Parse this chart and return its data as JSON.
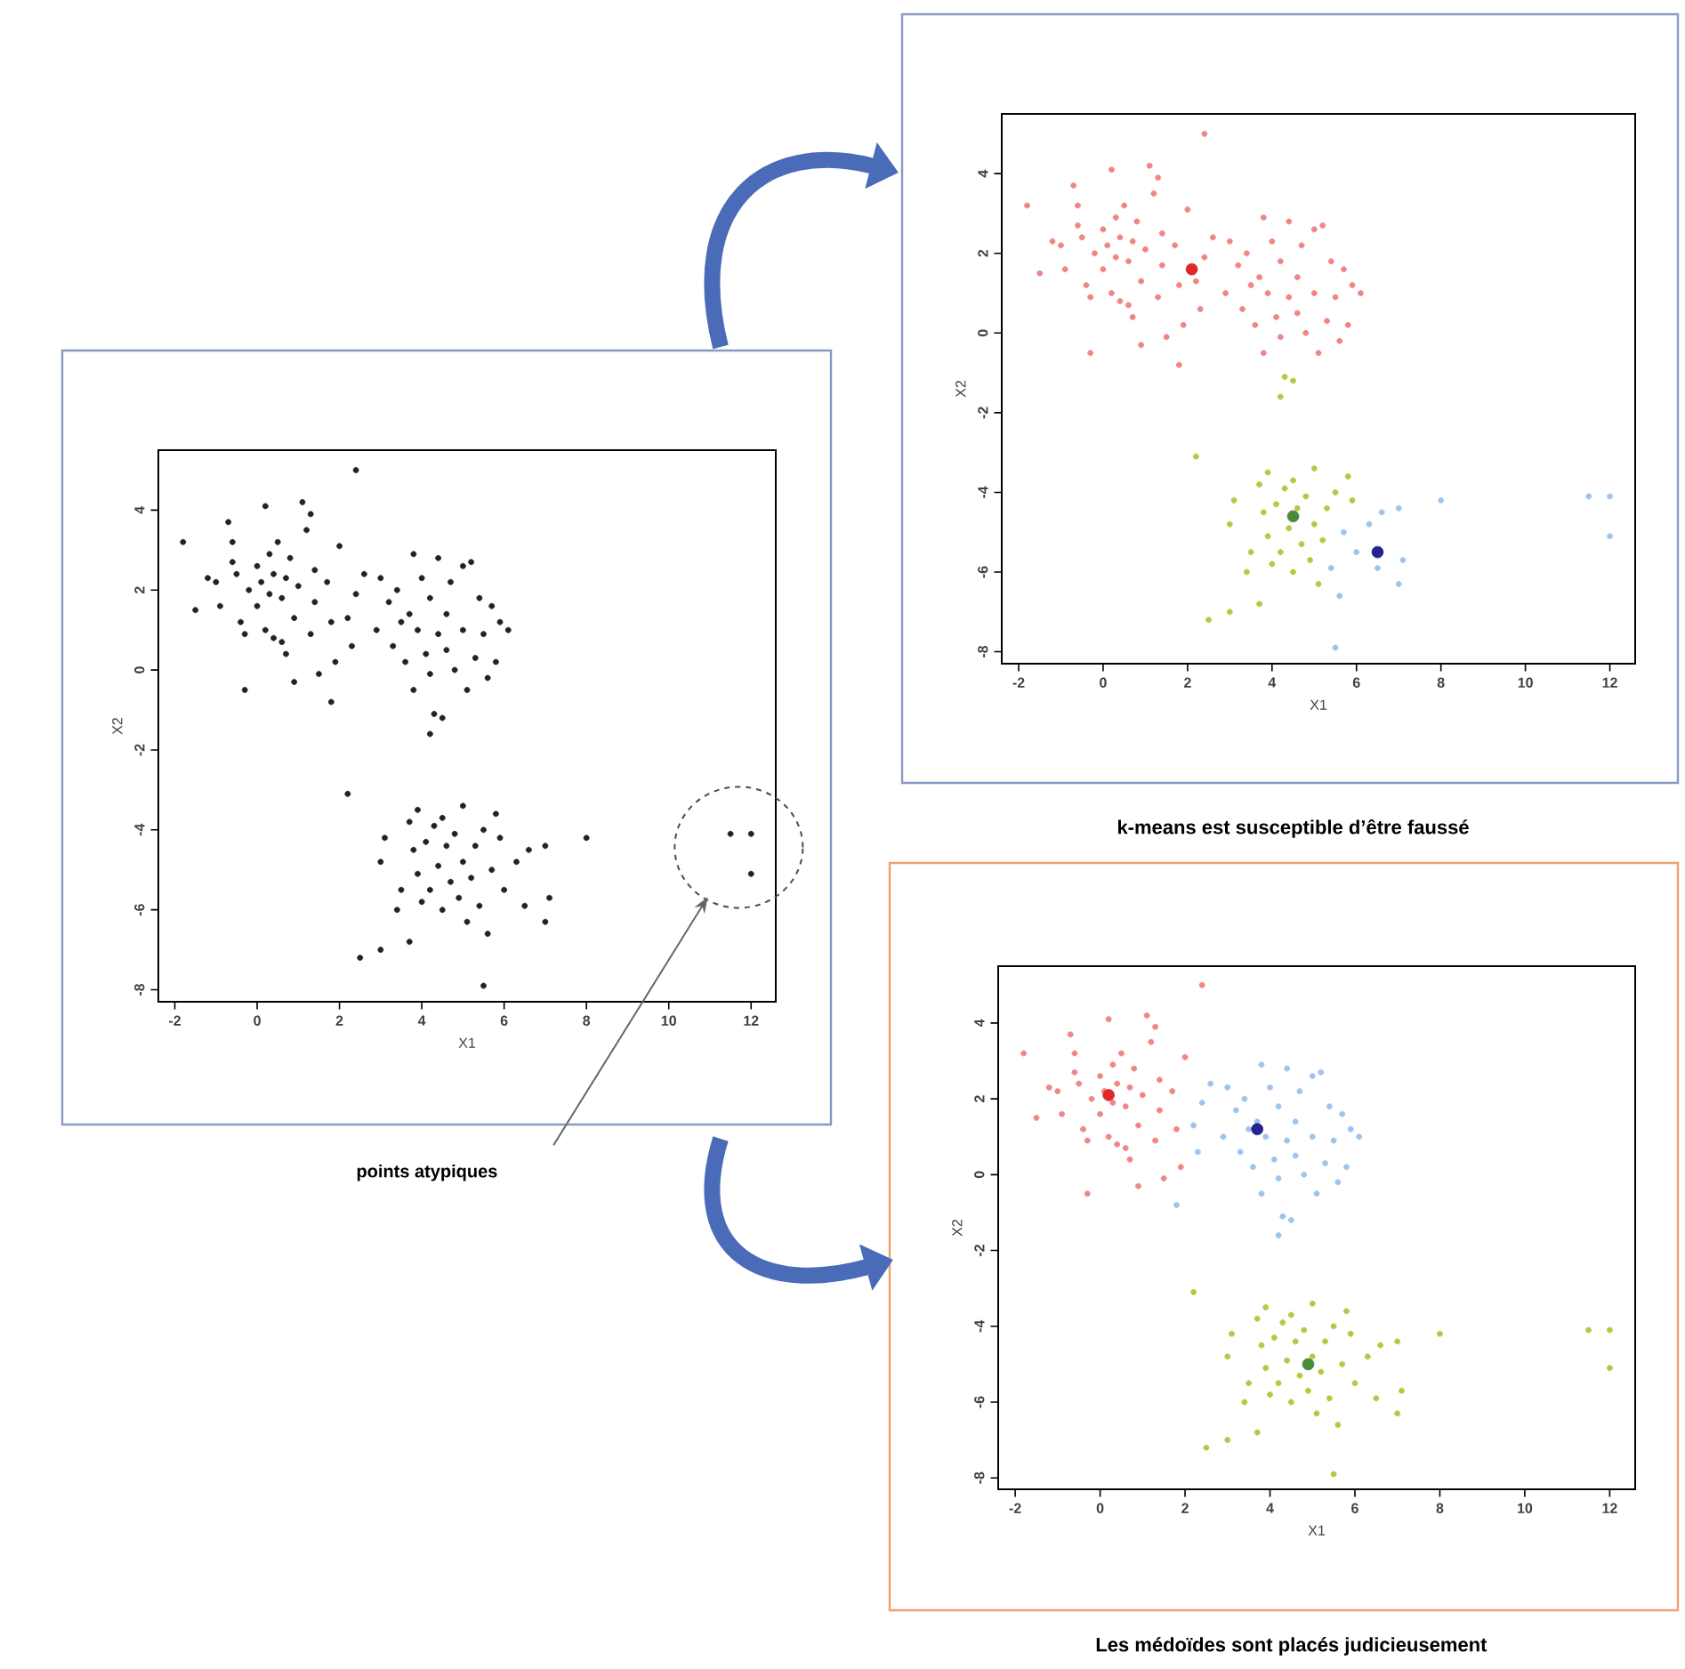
{
  "chart_data": [
    {
      "type": "scatter",
      "xlabel": "X1",
      "ylabel": "X2",
      "xlim": [
        -2.4,
        12.6
      ],
      "ylim": [
        -8.3,
        5.5
      ],
      "xticks": [
        -2,
        0,
        2,
        4,
        6,
        8,
        10,
        12
      ],
      "yticks": [
        -8,
        -6,
        -4,
        -2,
        0,
        2,
        4
      ],
      "series": [
        {
          "color": "#222222",
          "x": [
            -1.8,
            -1.5,
            -1.2,
            -1.0,
            -0.9,
            -0.7,
            -0.6,
            -0.6,
            -0.5,
            -0.4,
            -0.3,
            -0.3,
            -0.2,
            0.0,
            0.0,
            0.1,
            0.2,
            0.2,
            0.3,
            0.3,
            0.4,
            0.4,
            0.5,
            0.6,
            0.6,
            0.7,
            0.7,
            0.8,
            0.9,
            1.0,
            1.1,
            1.2,
            1.3,
            1.3,
            1.4,
            1.4,
            1.5,
            1.7,
            1.8,
            1.9,
            2.0,
            0.9,
            2.4,
            1.8,
            2.2,
            2.3,
            2.4,
            2.6,
            2.9,
            3.0,
            3.2,
            3.3,
            3.4,
            3.5,
            3.6,
            3.7,
            3.8,
            3.8,
            3.9,
            4.0,
            4.1,
            4.2,
            4.2,
            4.4,
            4.6,
            4.6,
            4.7,
            4.8,
            5.0,
            5.0,
            5.1,
            5.2,
            5.3,
            5.4,
            5.5,
            5.6,
            5.7,
            5.8,
            5.9,
            6.1,
            4.4,
            4.2,
            4.3,
            4.5,
            2.2,
            3.0,
            3.1,
            3.4,
            3.5,
            3.7,
            3.8,
            3.9,
            3.9,
            4.0,
            4.1,
            4.2,
            4.3,
            4.4,
            4.5,
            4.5,
            4.6,
            4.7,
            4.8,
            4.9,
            5.0,
            5.0,
            5.1,
            5.2,
            5.3,
            5.5,
            5.8,
            5.9,
            2.5,
            3.0,
            3.7,
            5.4,
            5.6,
            5.7,
            6.0,
            6.3,
            6.5,
            6.6,
            7.0,
            7.0,
            7.1,
            8.0,
            5.5,
            11.5,
            12.0,
            12.0
          ],
          "values": [
            3.2,
            1.5,
            2.3,
            2.2,
            1.6,
            3.7,
            3.2,
            2.7,
            2.4,
            1.2,
            0.9,
            -0.5,
            2.0,
            1.6,
            2.6,
            2.2,
            1.0,
            4.1,
            2.9,
            1.9,
            2.4,
            0.8,
            3.2,
            1.8,
            0.7,
            2.3,
            0.4,
            2.8,
            1.3,
            2.1,
            4.2,
            3.5,
            3.9,
            0.9,
            2.5,
            1.7,
            -0.1,
            2.2,
            1.2,
            0.2,
            3.1,
            -0.3,
            5.0,
            -0.8,
            1.3,
            0.6,
            1.9,
            2.4,
            1.0,
            2.3,
            1.7,
            0.6,
            2.0,
            1.2,
            0.2,
            1.4,
            2.9,
            -0.5,
            1.0,
            2.3,
            0.4,
            1.8,
            -0.1,
            2.8,
            1.4,
            0.5,
            2.2,
            0.0,
            2.6,
            1.0,
            -0.5,
            2.7,
            0.3,
            1.8,
            0.9,
            -0.2,
            1.6,
            0.2,
            1.2,
            1.0,
            0.9,
            -1.6,
            -1.1,
            -1.2,
            -3.1,
            -4.8,
            -4.2,
            -6.0,
            -5.5,
            -3.8,
            -4.5,
            -5.1,
            -3.5,
            -5.8,
            -4.3,
            -5.5,
            -3.9,
            -4.9,
            -6.0,
            -3.7,
            -4.4,
            -5.3,
            -4.1,
            -5.7,
            -3.4,
            -4.8,
            -6.3,
            -5.2,
            -4.4,
            -4.0,
            -3.6,
            -4.2,
            -7.2,
            -7.0,
            -6.8,
            -5.9,
            -6.6,
            -5.0,
            -5.5,
            -4.8,
            -5.9,
            -4.5,
            -4.4,
            -6.3,
            -5.7,
            -4.2,
            -7.9,
            -4.1,
            -4.1,
            -5.1
          ]
        }
      ],
      "annotations": [
        "points atypiques"
      ]
    },
    {
      "type": "scatter",
      "xlabel": "X1",
      "ylabel": "X2",
      "xlim": [
        -2.4,
        12.6
      ],
      "ylim": [
        -8.3,
        5.5
      ],
      "xticks": [
        -2,
        0,
        2,
        4,
        6,
        8,
        10,
        12
      ],
      "yticks": [
        -8,
        -6,
        -4,
        -2,
        0,
        2,
        4
      ],
      "series": [
        {
          "color": "#f08585",
          "x": [
            -1.8,
            -1.5,
            -1.2,
            -1.0,
            -0.9,
            -0.7,
            -0.6,
            -0.6,
            -0.5,
            -0.4,
            -0.3,
            -0.3,
            -0.2,
            0.0,
            0.0,
            0.1,
            0.2,
            0.2,
            0.3,
            0.3,
            0.4,
            0.4,
            0.5,
            0.6,
            0.6,
            0.7,
            0.7,
            0.8,
            0.9,
            1.0,
            1.1,
            1.2,
            1.3,
            1.3,
            1.4,
            1.4,
            1.5,
            1.7,
            1.8,
            1.9,
            2.0,
            0.9,
            2.4,
            1.8,
            2.2,
            2.3,
            2.4,
            2.6,
            2.9,
            3.0,
            3.2,
            3.3,
            3.4,
            3.5,
            3.6,
            3.7,
            3.8,
            3.8,
            3.9,
            4.0,
            4.1,
            4.2,
            4.2,
            4.4,
            4.6,
            4.6,
            4.7,
            4.8,
            5.0,
            5.0,
            5.1,
            5.2,
            5.3,
            5.4,
            5.5,
            5.6,
            5.7,
            5.8,
            5.9,
            6.1,
            4.4
          ],
          "values": [
            3.2,
            1.5,
            2.3,
            2.2,
            1.6,
            3.7,
            3.2,
            2.7,
            2.4,
            1.2,
            0.9,
            -0.5,
            2.0,
            1.6,
            2.6,
            2.2,
            1.0,
            4.1,
            2.9,
            1.9,
            2.4,
            0.8,
            3.2,
            1.8,
            0.7,
            2.3,
            0.4,
            2.8,
            1.3,
            2.1,
            4.2,
            3.5,
            3.9,
            0.9,
            2.5,
            1.7,
            -0.1,
            2.2,
            1.2,
            0.2,
            3.1,
            -0.3,
            5.0,
            -0.8,
            1.3,
            0.6,
            1.9,
            2.4,
            1.0,
            2.3,
            1.7,
            0.6,
            2.0,
            1.2,
            0.2,
            1.4,
            2.9,
            -0.5,
            1.0,
            2.3,
            0.4,
            1.8,
            -0.1,
            2.8,
            1.4,
            0.5,
            2.2,
            0.0,
            2.6,
            1.0,
            -0.5,
            2.7,
            0.3,
            1.8,
            0.9,
            -0.2,
            1.6,
            0.2,
            1.2,
            1.0,
            0.9
          ]
        },
        {
          "color": "#b5c840",
          "x": [
            4.2,
            4.3,
            4.5,
            2.2,
            3.0,
            3.1,
            3.4,
            3.5,
            3.7,
            3.8,
            3.9,
            3.9,
            4.0,
            4.1,
            4.2,
            4.3,
            4.4,
            4.5,
            4.5,
            4.6,
            4.7,
            4.8,
            4.9,
            5.0,
            5.0,
            5.1,
            5.2,
            5.3,
            5.5,
            5.8,
            5.9,
            2.5,
            3.0,
            3.7
          ],
          "values": [
            -1.6,
            -1.1,
            -1.2,
            -3.1,
            -4.8,
            -4.2,
            -6.0,
            -5.5,
            -3.8,
            -4.5,
            -5.1,
            -3.5,
            -5.8,
            -4.3,
            -5.5,
            -3.9,
            -4.9,
            -6.0,
            -3.7,
            -4.4,
            -5.3,
            -4.1,
            -5.7,
            -3.4,
            -4.8,
            -6.3,
            -5.2,
            -4.4,
            -4.0,
            -3.6,
            -4.2,
            -7.2,
            -7.0,
            -6.8
          ]
        },
        {
          "color": "#9cc4ee",
          "x": [
            5.4,
            5.6,
            5.7,
            6.0,
            6.3,
            6.5,
            6.6,
            7.0,
            7.0,
            7.1,
            8.0,
            5.5,
            11.5,
            12.0,
            12.0
          ],
          "values": [
            -5.9,
            -6.6,
            -5.0,
            -5.5,
            -4.8,
            -5.9,
            -4.5,
            -4.4,
            -6.3,
            -5.7,
            -4.2,
            -7.9,
            -4.1,
            -4.1,
            -5.1
          ]
        },
        {
          "color": "#e02828",
          "x": [
            2.1
          ],
          "values": [
            1.6
          ]
        },
        {
          "color": "#4a8a3a",
          "x": [
            4.5
          ],
          "values": [
            -4.6
          ]
        },
        {
          "color": "#24248a",
          "x": [
            6.5
          ],
          "values": [
            -5.5
          ]
        }
      ],
      "annotations": [
        "k-means est susceptible d’être faussé"
      ]
    },
    {
      "type": "scatter",
      "xlabel": "X1",
      "ylabel": "X2",
      "xlim": [
        -2.4,
        12.6
      ],
      "ylim": [
        -8.3,
        5.5
      ],
      "xticks": [
        -2,
        0,
        2,
        4,
        6,
        8,
        10,
        12
      ],
      "yticks": [
        -8,
        -6,
        -4,
        -2,
        0,
        2,
        4
      ],
      "series": [
        {
          "color": "#f08585",
          "x": [
            -1.8,
            -1.5,
            -1.2,
            -1.0,
            -0.9,
            -0.7,
            -0.6,
            -0.6,
            -0.5,
            -0.4,
            -0.3,
            -0.3,
            -0.2,
            0.0,
            0.0,
            0.1,
            0.2,
            0.2,
            0.3,
            0.3,
            0.4,
            0.4,
            0.5,
            0.6,
            0.6,
            0.7,
            0.7,
            0.8,
            0.9,
            1.0,
            1.1,
            1.2,
            1.3,
            1.3,
            1.4,
            1.4,
            1.5,
            1.7,
            1.8,
            1.9,
            2.0,
            0.9,
            2.4
          ],
          "values": [
            3.2,
            1.5,
            2.3,
            2.2,
            1.6,
            3.7,
            3.2,
            2.7,
            2.4,
            1.2,
            0.9,
            -0.5,
            2.0,
            1.6,
            2.6,
            2.2,
            1.0,
            4.1,
            2.9,
            1.9,
            2.4,
            0.8,
            3.2,
            1.8,
            0.7,
            2.3,
            0.4,
            2.8,
            1.3,
            2.1,
            4.2,
            3.5,
            3.9,
            0.9,
            2.5,
            1.7,
            -0.1,
            2.2,
            1.2,
            0.2,
            3.1,
            -0.3,
            5.0
          ]
        },
        {
          "color": "#9cc4ee",
          "x": [
            1.8,
            2.2,
            2.3,
            2.4,
            2.6,
            2.9,
            3.0,
            3.2,
            3.3,
            3.4,
            3.5,
            3.6,
            3.7,
            3.8,
            3.8,
            3.9,
            4.0,
            4.1,
            4.2,
            4.2,
            4.4,
            4.6,
            4.6,
            4.7,
            4.8,
            5.0,
            5.0,
            5.1,
            5.2,
            5.3,
            5.4,
            5.5,
            5.6,
            5.7,
            5.8,
            5.9,
            6.1,
            4.4,
            4.2,
            4.3,
            4.5
          ],
          "values": [
            -0.8,
            1.3,
            0.6,
            1.9,
            2.4,
            1.0,
            2.3,
            1.7,
            0.6,
            2.0,
            1.2,
            0.2,
            1.4,
            2.9,
            -0.5,
            1.0,
            2.3,
            0.4,
            1.8,
            -0.1,
            2.8,
            1.4,
            0.5,
            2.2,
            0.0,
            2.6,
            1.0,
            -0.5,
            2.7,
            0.3,
            1.8,
            0.9,
            -0.2,
            1.6,
            0.2,
            1.2,
            1.0,
            0.9,
            -1.6,
            -1.1,
            -1.2
          ]
        },
        {
          "color": "#b5c840",
          "x": [
            2.2,
            3.0,
            3.1,
            3.4,
            3.5,
            3.7,
            3.8,
            3.9,
            3.9,
            4.0,
            4.1,
            4.2,
            4.3,
            4.4,
            4.5,
            4.5,
            4.6,
            4.7,
            4.8,
            4.9,
            5.0,
            5.0,
            5.1,
            5.2,
            5.3,
            5.5,
            5.8,
            5.9,
            2.5,
            3.0,
            3.7,
            5.4,
            5.6,
            5.7,
            6.0,
            6.3,
            6.5,
            6.6,
            7.0,
            7.0,
            7.1,
            8.0,
            5.5,
            11.5,
            12.0,
            12.0
          ],
          "values": [
            -3.1,
            -4.8,
            -4.2,
            -6.0,
            -5.5,
            -3.8,
            -4.5,
            -5.1,
            -3.5,
            -5.8,
            -4.3,
            -5.5,
            -3.9,
            -4.9,
            -6.0,
            -3.7,
            -4.4,
            -5.3,
            -4.1,
            -5.7,
            -3.4,
            -4.8,
            -6.3,
            -5.2,
            -4.4,
            -4.0,
            -3.6,
            -4.2,
            -7.2,
            -7.0,
            -6.8,
            -5.9,
            -6.6,
            -5.0,
            -5.5,
            -4.8,
            -5.9,
            -4.5,
            -4.4,
            -6.3,
            -5.7,
            -4.2,
            -7.9,
            -4.1,
            -4.1,
            -5.1
          ]
        },
        {
          "color": "#e02828",
          "x": [
            0.2
          ],
          "values": [
            2.1
          ]
        },
        {
          "color": "#24248a",
          "x": [
            3.7
          ],
          "values": [
            1.2
          ]
        },
        {
          "color": "#4a8a3a",
          "x": [
            4.9
          ],
          "values": [
            -5.0
          ]
        }
      ],
      "annotations": [
        "Les médoïdes sont placés judicieusement"
      ]
    }
  ]
}
